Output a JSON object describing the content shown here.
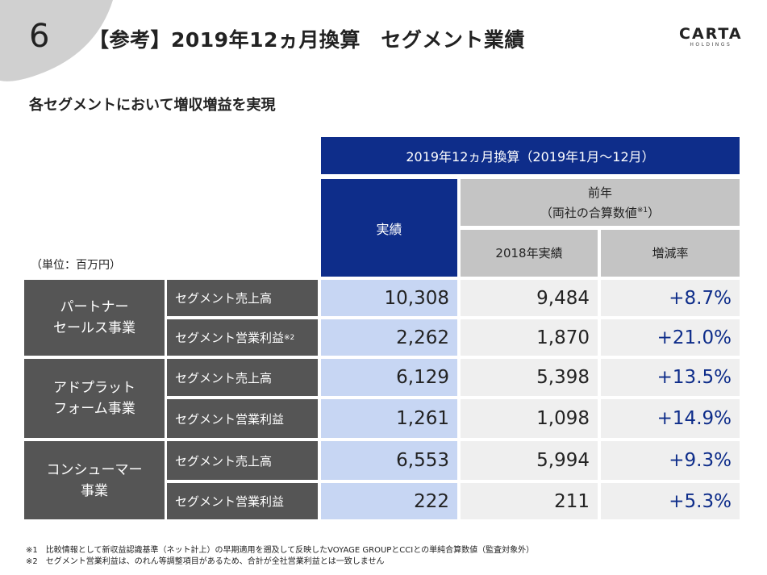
{
  "header": {
    "page_number": "6",
    "title": "【参考】2019年12ヵ月換算　セグメント業績",
    "logo_main": "CARTA",
    "logo_sub": "HOLDINGS"
  },
  "subtitle": "各セグメントにおいて増収増益を実現",
  "unit_label": "（単位：百万円）",
  "table": {
    "period_header": "2019年12ヵ月換算（2019年1月～12月）",
    "actual_header": "実績",
    "prev_header_line1": "前年",
    "prev_header_line2": "（両社の合算数値",
    "prev_header_note": "※1",
    "prev_header_close": "）",
    "prev_actual_header": "2018年実績",
    "rate_header": "増減率",
    "segments": [
      {
        "name_line1": "パートナー",
        "name_line2": "セールス事業",
        "rows": [
          {
            "metric": "セグメント売上高",
            "note": "",
            "actual": "10,308",
            "prev": "9,484",
            "rate": "+8.7%"
          },
          {
            "metric": "セグメント営業利益",
            "note": "※2",
            "actual": "2,262",
            "prev": "1,870",
            "rate": "+21.0%"
          }
        ]
      },
      {
        "name_line1": "アドプラット",
        "name_line2": "フォーム事業",
        "rows": [
          {
            "metric": "セグメント売上高",
            "note": "",
            "actual": "6,129",
            "prev": "5,398",
            "rate": "+13.5%"
          },
          {
            "metric": "セグメント営業利益",
            "note": "",
            "actual": "1,261",
            "prev": "1,098",
            "rate": "+14.9%"
          }
        ]
      },
      {
        "name_line1": "コンシューマー",
        "name_line2": "事業",
        "rows": [
          {
            "metric": "セグメント売上高",
            "note": "",
            "actual": "6,553",
            "prev": "5,994",
            "rate": "+9.3%"
          },
          {
            "metric": "セグメント営業利益",
            "note": "",
            "actual": "222",
            "prev": "211",
            "rate": "+5.3%"
          }
        ]
      }
    ]
  },
  "footnotes": [
    "※1　比較情報として新収益認識基準（ネット計上）の早期適用を遡及して反映したVOYAGE GROUPとCCIとの単純合算数値（監査対象外）",
    "※2　セグメント営業利益は、のれん等調整項目があるため、合計が全社営業利益とは一致しません"
  ],
  "colors": {
    "navy": "#0e2d8a",
    "segment_grey": "#555555",
    "actual_blue": "#c7d6f3",
    "light_grey": "#efefef",
    "header_grey": "#c4c4c4"
  }
}
